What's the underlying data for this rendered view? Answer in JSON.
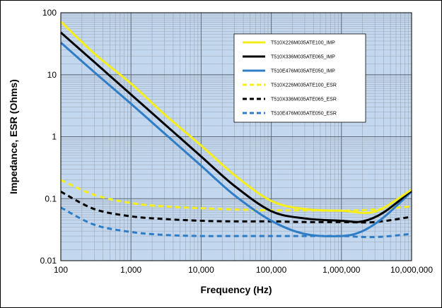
{
  "chart_data": {
    "type": "line",
    "xlabel": "Frequency (Hz)",
    "ylabel": "Impedance, ESR (Ohms)",
    "x_scale": "log",
    "y_scale": "log",
    "xlim": [
      100,
      10000000
    ],
    "ylim": [
      0.01,
      100
    ],
    "x_ticks": [
      {
        "value": 100,
        "label": "100"
      },
      {
        "value": 1000,
        "label": "1,000"
      },
      {
        "value": 10000,
        "label": "10,000"
      },
      {
        "value": 100000,
        "label": "100,000"
      },
      {
        "value": 1000000,
        "label": "1,000,000"
      },
      {
        "value": 10000000,
        "label": "10,000,000"
      }
    ],
    "y_ticks": [
      {
        "value": 0.01,
        "label": "0.01"
      },
      {
        "value": 0.1,
        "label": "0.1"
      },
      {
        "value": 1,
        "label": "1"
      },
      {
        "value": 10,
        "label": "10"
      },
      {
        "value": 100,
        "label": "100"
      }
    ],
    "grid": true,
    "plot_background": "#c3d7ee",
    "grid_color": "#9aa6b2",
    "legend_position": "top-right",
    "series": [
      {
        "name": "T510X226M035ATE100_IMP",
        "color": "#f5ee1b",
        "style": "solid",
        "x": [
          100,
          300,
          1000,
          3000,
          10000,
          30000,
          100000,
          300000,
          1000000,
          3000000,
          10000000
        ],
        "y": [
          72,
          22,
          7.2,
          2.3,
          0.72,
          0.24,
          0.092,
          0.068,
          0.064,
          0.062,
          0.14
        ]
      },
      {
        "name": "T510X336M035ATE065_IMP",
        "color": "#000000",
        "style": "solid",
        "x": [
          100,
          300,
          1000,
          3000,
          10000,
          30000,
          100000,
          300000,
          1000000,
          2000000,
          4000000,
          10000000
        ],
        "y": [
          48,
          16,
          4.8,
          1.6,
          0.48,
          0.16,
          0.063,
          0.048,
          0.044,
          0.043,
          0.06,
          0.135
        ]
      },
      {
        "name": "T510E476M035ATE050_IMP",
        "color": "#2f7dc6",
        "style": "solid",
        "x": [
          100,
          300,
          1000,
          3000,
          10000,
          30000,
          100000,
          300000,
          1000000,
          2000000,
          4000000,
          10000000
        ],
        "y": [
          33,
          11,
          3.4,
          1.13,
          0.34,
          0.113,
          0.044,
          0.027,
          0.025,
          0.03,
          0.05,
          0.13
        ]
      },
      {
        "name": "T510X226M035ATE100_ESR",
        "color": "#f5ee1b",
        "style": "dashed",
        "x": [
          100,
          300,
          1000,
          3000,
          10000,
          30000,
          100000,
          300000,
          1000000,
          3000000,
          10000000
        ],
        "y": [
          0.2,
          0.115,
          0.085,
          0.075,
          0.07,
          0.067,
          0.065,
          0.065,
          0.064,
          0.067,
          0.075
        ]
      },
      {
        "name": "T510X336M035ATE065_ESR",
        "color": "#000000",
        "style": "dashed",
        "x": [
          100,
          300,
          1000,
          3000,
          10000,
          30000,
          100000,
          300000,
          1000000,
          3000000,
          10000000
        ],
        "y": [
          0.13,
          0.068,
          0.052,
          0.047,
          0.044,
          0.043,
          0.043,
          0.042,
          0.042,
          0.042,
          0.051
        ]
      },
      {
        "name": "T510E476M035ATE050_ESR",
        "color": "#2f7dc6",
        "style": "dashed",
        "x": [
          100,
          300,
          1000,
          3000,
          10000,
          30000,
          100000,
          300000,
          1000000,
          3000000,
          10000000
        ],
        "y": [
          0.072,
          0.038,
          0.029,
          0.026,
          0.025,
          0.025,
          0.025,
          0.025,
          0.025,
          0.024,
          0.027
        ]
      }
    ]
  }
}
